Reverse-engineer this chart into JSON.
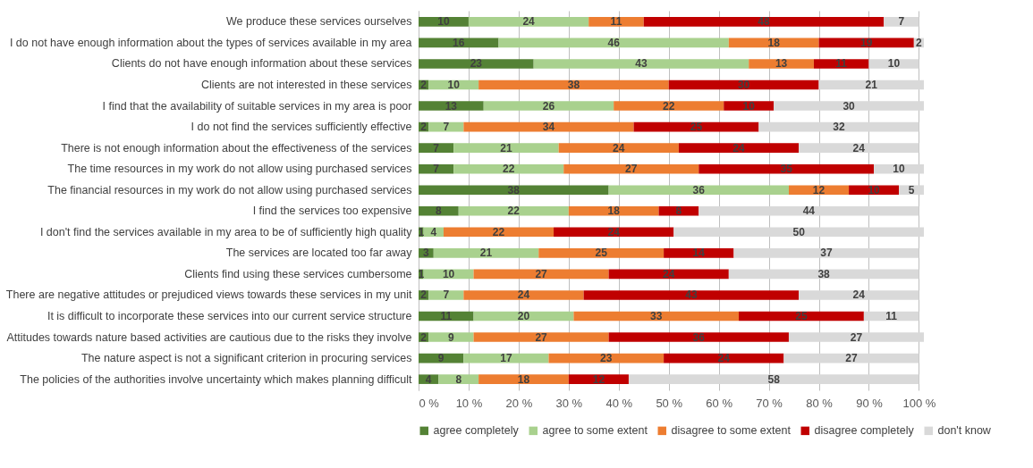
{
  "chart_data": {
    "type": "bar",
    "orientation": "horizontal",
    "stacked": true,
    "data_labels": true,
    "grid": "x",
    "legend": "bottom",
    "categories": [
      "We produce these services ourselves",
      "I do not have enough information about the types of services available in my area",
      "Clients do not have enough information about these services",
      "Clients are not interested in these services",
      "I find that the availability of suitable services in my area is poor",
      "I do not find the services sufficiently effective",
      "There is not enough information about the effectiveness of the services",
      "The time resources in my work do not allow using purchased services",
      "The financial resources in my work do not allow using purchased services",
      "I find the services too expensive",
      "I don't find the services available in my area to be of sufficiently high quality",
      "The services are located too far away",
      "Clients find using these services cumbersome",
      "There are negative attitudes or prejudiced views towards these services in my unit",
      "It is difficult to incorporate these services into our current service structure",
      "Attitudes towards nature based activities are cautious due to the risks they involve",
      "The nature aspect is not a significant criterion in procuring services",
      "The policies of the authorities involve uncertainty which makes planning difficult"
    ],
    "xlim": [
      0,
      101
    ],
    "xticks": [
      {
        "value": 0,
        "label": "0 %"
      },
      {
        "value": 10,
        "label": "10 %"
      },
      {
        "value": 20,
        "label": "20 %"
      },
      {
        "value": 30,
        "label": "30 %"
      },
      {
        "value": 40,
        "label": "40 %"
      },
      {
        "value": 50,
        "label": "50 %"
      },
      {
        "value": 60,
        "label": "60 %"
      },
      {
        "value": 70,
        "label": "70 %"
      },
      {
        "value": 80,
        "label": "80 %"
      },
      {
        "value": 90,
        "label": "90 %"
      },
      {
        "value": 100,
        "label": "100 %"
      }
    ],
    "series": [
      {
        "name": "agree completely",
        "color": "#548235",
        "values": [
          10,
          16,
          23,
          2,
          13,
          2,
          7,
          7,
          38,
          8,
          1,
          3,
          1,
          2,
          11,
          2,
          9,
          4
        ]
      },
      {
        "name": "agree to some extent",
        "color": "#a9d18e",
        "values": [
          24,
          46,
          43,
          10,
          26,
          7,
          21,
          22,
          36,
          22,
          4,
          21,
          10,
          7,
          20,
          9,
          17,
          8
        ]
      },
      {
        "name": "disagree to some extent",
        "color": "#ed7d31",
        "values": [
          11,
          18,
          13,
          38,
          22,
          34,
          24,
          27,
          12,
          18,
          22,
          25,
          27,
          24,
          33,
          27,
          23,
          18
        ]
      },
      {
        "name": "disagree completely",
        "color": "#c00000",
        "values": [
          48,
          19,
          11,
          30,
          10,
          25,
          24,
          35,
          10,
          8,
          24,
          14,
          24,
          43,
          25,
          36,
          24,
          12
        ]
      },
      {
        "name": "don't know",
        "color": "#d9d9d9",
        "values": [
          7,
          2,
          10,
          21,
          30,
          32,
          24,
          10,
          5,
          44,
          50,
          37,
          38,
          24,
          11,
          27,
          27,
          58
        ]
      }
    ]
  }
}
